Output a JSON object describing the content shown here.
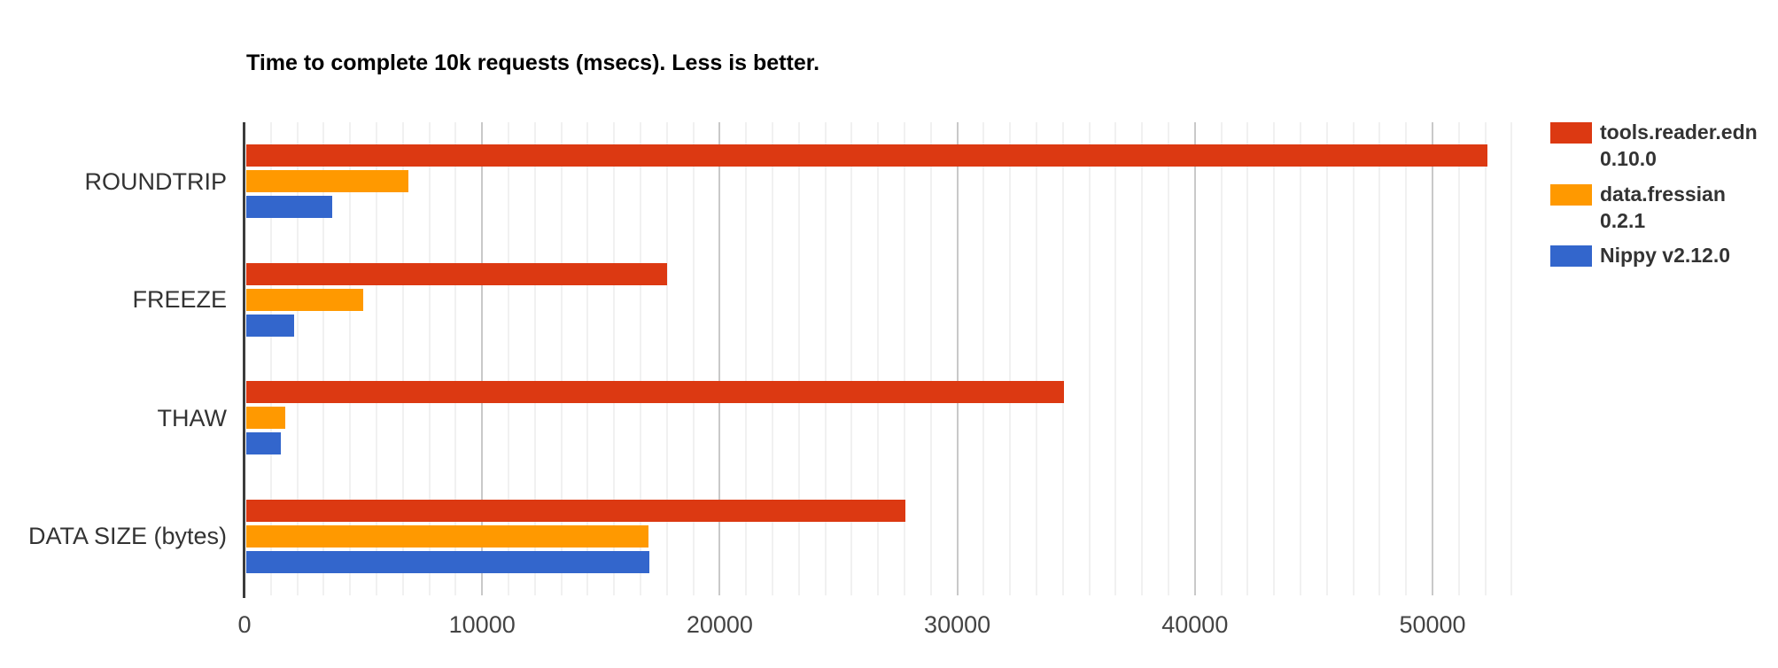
{
  "chart_data": {
    "type": "bar",
    "orientation": "horizontal",
    "title": "Time to complete 10k requests (msecs). Less is better.",
    "categories": [
      "ROUNDTRIP",
      "FREEZE",
      "THAW",
      "DATA SIZE (bytes)"
    ],
    "series": [
      {
        "name": "tools.reader.edn 0.10.0",
        "legend_lines": [
          "tools.reader.edn",
          "0.10.0"
        ],
        "color": "#dc3912",
        "values": [
          52300,
          17800,
          34500,
          27800
        ]
      },
      {
        "name": "data.fressian 0.2.1",
        "legend_lines": [
          "data.fressian",
          "0.2.1"
        ],
        "color": "#ff9900",
        "values": [
          6900,
          5000,
          1730,
          17000
        ]
      },
      {
        "name": "Nippy v2.12.0",
        "legend_lines": [
          "Nippy v2.12.0"
        ],
        "color": "#3366cc",
        "values": [
          3700,
          2100,
          1520,
          17050
        ]
      }
    ],
    "x_ticks": [
      0,
      10000,
      20000,
      30000,
      40000,
      50000
    ],
    "x_tick_labels": [
      "0",
      "10000",
      "20000",
      "30000",
      "40000",
      "50000"
    ],
    "xlim": [
      0,
      54250
    ],
    "xlabel": "",
    "ylabel": "",
    "grid": true,
    "legend_position": "right",
    "colors": {
      "background": "#ffffff",
      "title_text": "#000000",
      "tick_text": "#444444",
      "category_text": "#333333",
      "legend_text": "#333333",
      "axis_line": "#3c3c3c",
      "major_grid": "#c9c9c9",
      "minor_grid": "#f1f1f1"
    }
  }
}
